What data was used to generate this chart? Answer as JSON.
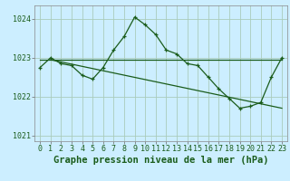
{
  "title": "Graphe pression niveau de la mer (hPa)",
  "background_color": "#cceeff",
  "grid_color": "#aaccbb",
  "line_color": "#1a5c1a",
  "xlim": [
    -0.5,
    23.5
  ],
  "ylim": [
    1020.85,
    1024.35
  ],
  "yticks": [
    1021,
    1022,
    1023,
    1024
  ],
  "xticks": [
    0,
    1,
    2,
    3,
    4,
    5,
    6,
    7,
    8,
    9,
    10,
    11,
    12,
    13,
    14,
    15,
    16,
    17,
    18,
    19,
    20,
    21,
    22,
    23
  ],
  "series1_x": [
    0,
    1,
    2,
    3,
    4,
    5,
    6,
    7,
    8,
    9,
    10,
    11,
    12,
    13,
    14,
    15,
    16,
    17,
    18,
    19,
    20,
    21,
    22,
    23
  ],
  "series1_y": [
    1022.75,
    1023.0,
    1022.85,
    1022.8,
    1022.55,
    1022.45,
    1022.75,
    1023.2,
    1023.55,
    1024.05,
    1023.85,
    1023.6,
    1023.2,
    1023.1,
    1022.85,
    1022.8,
    1022.5,
    1022.2,
    1021.95,
    1021.7,
    1021.75,
    1021.85,
    1022.5,
    1023.0
  ],
  "series2_x": [
    0,
    23
  ],
  "series2_y": [
    1022.95,
    1022.95
  ],
  "series3_x": [
    1,
    23
  ],
  "series3_y": [
    1022.95,
    1021.7
  ],
  "title_fontsize": 7.5,
  "tick_fontsize": 6
}
